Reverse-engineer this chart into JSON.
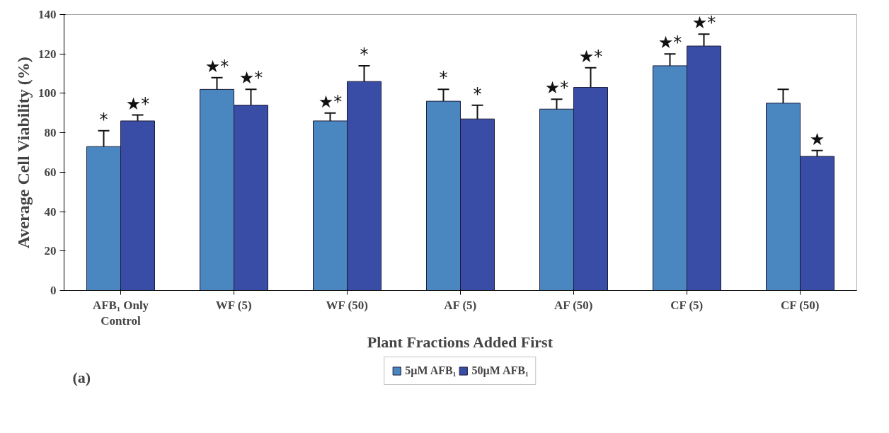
{
  "chart_data": {
    "type": "bar",
    "xlabel": "Plant Fractions Added First",
    "ylabel": "Average Cell Viability (%)",
    "categories": [
      "AFB₁ Only\nControl",
      "WF (5)",
      "WF (50)",
      "AF (5)",
      "AF (50)",
      "CF (5)",
      "CF (50)"
    ],
    "series": [
      {
        "name": "5µM AFB₁",
        "color": "#4a86c0",
        "values": [
          73,
          102,
          86,
          96,
          92,
          114,
          95
        ],
        "errors": [
          8,
          6,
          4,
          6,
          5,
          6,
          7
        ]
      },
      {
        "name": "50µM AFB₁",
        "color": "#3a4da6",
        "values": [
          86,
          94,
          106,
          87,
          103,
          124,
          68
        ],
        "errors": [
          3,
          8,
          8,
          7,
          10,
          6,
          3
        ]
      }
    ],
    "ylim": [
      0,
      140
    ],
    "yticks": [
      0,
      20,
      40,
      60,
      80,
      100,
      120,
      140
    ],
    "legend": "bottom",
    "grid": false,
    "annotations": [
      {
        "text": "*",
        "x": "AFB₁ Only\nControl",
        "y": 73
      },
      {
        "text": "★*",
        "x": "AFB₁ Only\nControl",
        "y": 86
      },
      {
        "text": "★*",
        "x": "WF (5)",
        "y": 102
      },
      {
        "text": "★*",
        "x": "WF (5)",
        "y": 94
      },
      {
        "text": "★*",
        "x": "WF (50)",
        "y": 86
      },
      {
        "text": "*",
        "x": "WF (50)",
        "y": 106
      },
      {
        "text": "*",
        "x": "AF (5)",
        "y": 96
      },
      {
        "text": "*",
        "x": "AF (5)",
        "y": 87
      },
      {
        "text": "★*",
        "x": "AF (50)",
        "y": 92
      },
      {
        "text": "★*",
        "x": "AF (50)",
        "y": 103
      },
      {
        "text": "★*",
        "x": "CF (5)",
        "y": 114
      },
      {
        "text": "★*",
        "x": "CF (5)",
        "y": 124
      },
      {
        "text": "★",
        "x": "CF (50)",
        "y": 68
      },
      "(a)"
    ]
  }
}
